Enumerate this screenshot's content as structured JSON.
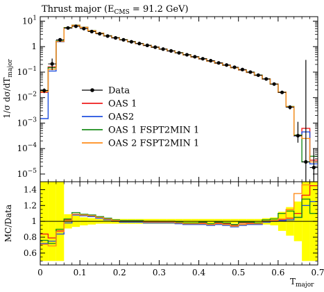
{
  "chart_data": {
    "type": "line",
    "title": "Thrust major (E",
    "title_sub": "CMS",
    "title_tail": " = 91.2 GeV)",
    "ylabel": "1/σ dσ/dT",
    "ylabel_sub": "major",
    "xlabel": "T",
    "xlabel_sub": "major",
    "ratio_ylabel": "MC/Data",
    "xlim": [
      0,
      0.7
    ],
    "ylim_log": [
      5e-06,
      15
    ],
    "ratio_ylim": [
      0.45,
      1.5
    ],
    "xticks": [
      "0",
      "0.1",
      "0.2",
      "0.3",
      "0.4",
      "0.5",
      "0.6",
      "0.7"
    ],
    "xtick_values": [
      0,
      0.1,
      0.2,
      0.3,
      0.4,
      0.5,
      0.6,
      0.7
    ],
    "yticks_main": [
      {
        "value": 10,
        "base": "10",
        "exp": "1"
      },
      {
        "value": 1,
        "base": "1",
        "exp": ""
      },
      {
        "value": 0.1,
        "base": "10",
        "exp": "−1"
      },
      {
        "value": 0.01,
        "base": "10",
        "exp": "−2"
      },
      {
        "value": 0.001,
        "base": "10",
        "exp": "−3"
      },
      {
        "value": 0.0001,
        "base": "10",
        "exp": "−4"
      },
      {
        "value": 1e-05,
        "base": "10",
        "exp": "−5"
      }
    ],
    "yticks_ratio": [
      "0.6",
      "0.8",
      "1",
      "1.2",
      "1.4"
    ],
    "ytick_ratio_values": [
      0.6,
      0.8,
      1.0,
      1.2,
      1.4
    ],
    "bin_edges": [
      0,
      0.02,
      0.04,
      0.06,
      0.08,
      0.1,
      0.12,
      0.14,
      0.16,
      0.18,
      0.2,
      0.22,
      0.24,
      0.26,
      0.28,
      0.3,
      0.32,
      0.34,
      0.36,
      0.38,
      0.4,
      0.42,
      0.44,
      0.46,
      0.48,
      0.5,
      0.52,
      0.54,
      0.56,
      0.58,
      0.6,
      0.62,
      0.64,
      0.66,
      0.68,
      0.7
    ],
    "data": {
      "name": "Data",
      "color": "#000000",
      "values": [
        0.019,
        0.21,
        1.85,
        5.4,
        6.3,
        5.1,
        3.9,
        3.2,
        2.6,
        2.2,
        1.85,
        1.55,
        1.32,
        1.12,
        0.95,
        0.8,
        0.68,
        0.57,
        0.48,
        0.4,
        0.335,
        0.28,
        0.23,
        0.19,
        0.155,
        0.126,
        0.1,
        0.076,
        0.054,
        0.034,
        0.016,
        0.0042,
        0.00032,
        3e-05,
        1.8e-05
      ],
      "err_up": [
        0.004,
        0.13,
        0.3,
        0.3,
        0.3,
        0.2,
        0.15,
        0.1,
        0.08,
        0.07,
        0.06,
        0.05,
        0.04,
        0.035,
        0.03,
        0.025,
        0.02,
        0.018,
        0.015,
        0.012,
        0.01,
        0.009,
        0.008,
        0.007,
        0.006,
        0.005,
        0.004,
        0.004,
        0.003,
        0.002,
        0.002,
        0.0008,
        0.0008,
        0.3,
        8e-05
      ],
      "err_down": [
        0.004,
        0.09,
        0.3,
        0.3,
        0.3,
        0.2,
        0.15,
        0.1,
        0.08,
        0.07,
        0.06,
        0.05,
        0.04,
        0.035,
        0.03,
        0.025,
        0.02,
        0.018,
        0.015,
        0.012,
        0.01,
        0.009,
        0.008,
        0.007,
        0.006,
        0.005,
        0.004,
        0.004,
        0.003,
        0.002,
        0.002,
        0.0008,
        0.00015,
        2.5e-05,
        1.5e-05
      ]
    },
    "series": [
      {
        "name": "OAS 1",
        "color": "#ee1c1c",
        "values": [
          0.016,
          0.16,
          1.63,
          5.5,
          6.9,
          5.7,
          4.2,
          3.35,
          2.65,
          2.23,
          1.86,
          1.56,
          1.32,
          1.12,
          0.955,
          0.8,
          0.68,
          0.57,
          0.475,
          0.395,
          0.33,
          0.272,
          0.225,
          0.185,
          0.149,
          0.122,
          0.098,
          0.075,
          0.054,
          0.034,
          0.0162,
          0.0044,
          0.00033,
          0.00062,
          3.5e-05
        ],
        "ratio": [
          0.84,
          0.79,
          0.88,
          1.02,
          1.09,
          1.08,
          1.07,
          1.05,
          1.03,
          1.01,
          1.0,
          1.0,
          1.0,
          1.0,
          1.0,
          0.99,
          0.99,
          0.98,
          0.97,
          0.97,
          0.98,
          0.96,
          0.98,
          0.97,
          0.95,
          0.98,
          0.98,
          0.97,
          1.0,
          1.01,
          1.02,
          1.04,
          1.1,
          1.33,
          1.45
        ]
      },
      {
        "name": "OAS2",
        "color": "#1f4fe0",
        "values": [
          0.0015,
          0.11,
          1.55,
          5.3,
          6.8,
          5.7,
          4.2,
          3.33,
          2.64,
          2.22,
          1.85,
          1.55,
          1.31,
          1.11,
          0.95,
          0.795,
          0.675,
          0.565,
          0.47,
          0.39,
          0.325,
          0.27,
          0.224,
          0.183,
          0.147,
          0.12,
          0.097,
          0.074,
          0.053,
          0.034,
          0.0161,
          0.0043,
          0.00031,
          0.00045,
          2.5e-05
        ],
        "ratio": [
          0.72,
          0.75,
          0.84,
          0.98,
          1.08,
          1.07,
          1.06,
          1.04,
          1.02,
          1.0,
          0.99,
          0.99,
          0.99,
          0.98,
          0.98,
          0.98,
          0.98,
          0.97,
          0.96,
          0.96,
          0.96,
          0.95,
          0.96,
          0.95,
          0.93,
          0.95,
          0.96,
          0.96,
          0.99,
          1.0,
          1.01,
          1.02,
          1.05,
          1.2,
          1.25
        ]
      },
      {
        "name": "OAS 1 FSPT2MIN 1",
        "color": "#1a8c1a",
        "values": [
          0.019,
          0.15,
          1.68,
          5.6,
          7.0,
          5.75,
          4.25,
          3.38,
          2.67,
          2.25,
          1.87,
          1.57,
          1.33,
          1.13,
          0.96,
          0.805,
          0.685,
          0.575,
          0.478,
          0.398,
          0.332,
          0.274,
          0.226,
          0.186,
          0.15,
          0.123,
          0.099,
          0.076,
          0.054,
          0.034,
          0.0163,
          0.0045,
          0.00034,
          3e-05,
          5e-05
        ],
        "ratio": [
          0.76,
          0.72,
          0.9,
          1.03,
          1.11,
          1.09,
          1.08,
          1.06,
          1.04,
          1.02,
          1.01,
          1.01,
          1.01,
          1.0,
          1.0,
          1.0,
          1.0,
          0.99,
          0.98,
          0.98,
          0.99,
          0.97,
          0.99,
          0.98,
          0.96,
          0.99,
          0.99,
          0.98,
          1.02,
          1.03,
          1.1,
          1.13,
          1.05,
          1.28,
          1.1
        ]
      },
      {
        "name": "OAS 2 FSPT2MIN 1",
        "color": "#ff8c1a",
        "values": [
          0.017,
          0.13,
          1.6,
          5.45,
          6.85,
          5.68,
          4.21,
          3.34,
          2.65,
          2.23,
          1.855,
          1.555,
          1.315,
          1.115,
          0.952,
          0.798,
          0.678,
          0.568,
          0.472,
          0.392,
          0.327,
          0.271,
          0.225,
          0.184,
          0.148,
          0.121,
          0.0975,
          0.0745,
          0.0535,
          0.0341,
          0.0162,
          0.0044,
          0.00032,
          0.00025,
          3e-05
        ],
        "ratio": [
          0.71,
          0.69,
          0.87,
          1.0,
          1.09,
          1.08,
          1.07,
          1.05,
          1.03,
          1.01,
          1.0,
          1.0,
          1.0,
          0.99,
          0.99,
          0.99,
          0.99,
          0.98,
          0.97,
          0.97,
          0.97,
          0.96,
          0.97,
          0.96,
          0.94,
          0.96,
          0.97,
          0.97,
          1.0,
          1.01,
          1.03,
          1.15,
          1.35,
          1.46,
          1.5
        ]
      }
    ],
    "band": {
      "color": "#ffff00",
      "half_width": [
        0.5,
        0.5,
        0.5,
        0.09,
        0.07,
        0.05,
        0.04,
        0.03,
        0.03,
        0.03,
        0.03,
        0.03,
        0.03,
        0.03,
        0.03,
        0.03,
        0.03,
        0.03,
        0.03,
        0.03,
        0.03,
        0.03,
        0.03,
        0.03,
        0.03,
        0.03,
        0.03,
        0.03,
        0.04,
        0.05,
        0.12,
        0.18,
        0.25,
        0.5,
        0.5
      ]
    },
    "legend": [
      "Data",
      "OAS 1",
      "OAS2",
      "OAS 1 FSPT2MIN 1",
      "OAS 2 FSPT2MIN 1"
    ],
    "legend_position": "center-left"
  }
}
